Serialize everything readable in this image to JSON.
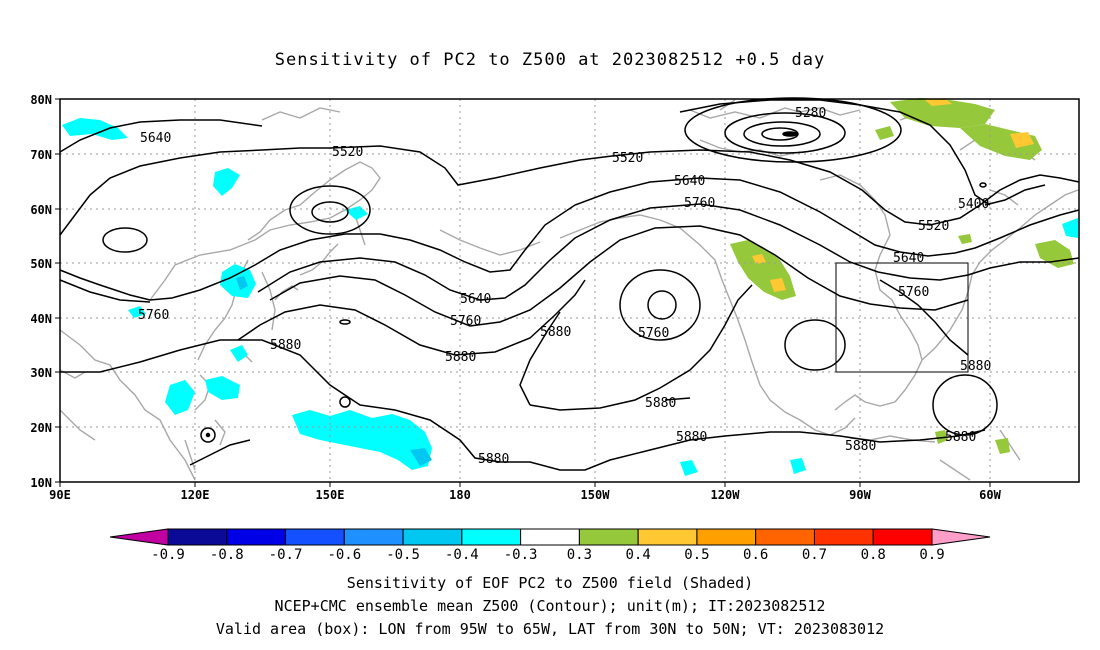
{
  "title": "Sensitivity of PC2 to Z500 at 2023082512 +0.5 day",
  "lat_labels": [
    "80N",
    "70N",
    "60N",
    "50N",
    "40N",
    "30N",
    "20N",
    "10N"
  ],
  "lon_labels": [
    "90E",
    "120E",
    "150E",
    "180",
    "150W",
    "120W",
    "90W",
    "60W"
  ],
  "contour_labels": [
    "5280",
    "5400",
    "5520",
    "5520",
    "5520",
    "5640",
    "5640",
    "5640",
    "5640",
    "5760",
    "5760",
    "5760",
    "5760",
    "5760",
    "5880",
    "5880",
    "5880",
    "5880",
    "5880",
    "5880",
    "5880",
    "5880"
  ],
  "colorbar": {
    "labels": [
      "-0.9",
      "-0.8",
      "-0.7",
      "-0.6",
      "-0.5",
      "-0.4",
      "-0.3",
      "0.3",
      "0.4",
      "0.5",
      "0.6",
      "0.7",
      "0.8",
      "0.9"
    ],
    "colors": [
      "#0a0a96",
      "#0000e6",
      "#1450ff",
      "#1e90ff",
      "#00c8f0",
      "#00ffff",
      "#ffffff",
      "#96c83c",
      "#ffc832",
      "#ffa000",
      "#ff6400",
      "#ff3200",
      "#ff0000"
    ],
    "low_end_color": "#c000a0",
    "high_end_color": "#ff9ec8"
  },
  "box": {
    "lon_min": "95W",
    "lon_max": "65W",
    "lat_min": "30N",
    "lat_max": "50N"
  },
  "captions": [
    "Sensitivity of EOF PC2 to Z500 field (Shaded)",
    "NCEP+CMC ensemble mean Z500 (Contour); unit(m); IT:2023082512",
    "Valid area (box): LON from 95W to 65W, LAT from 30N to 50N; VT: 2023083012"
  ]
}
